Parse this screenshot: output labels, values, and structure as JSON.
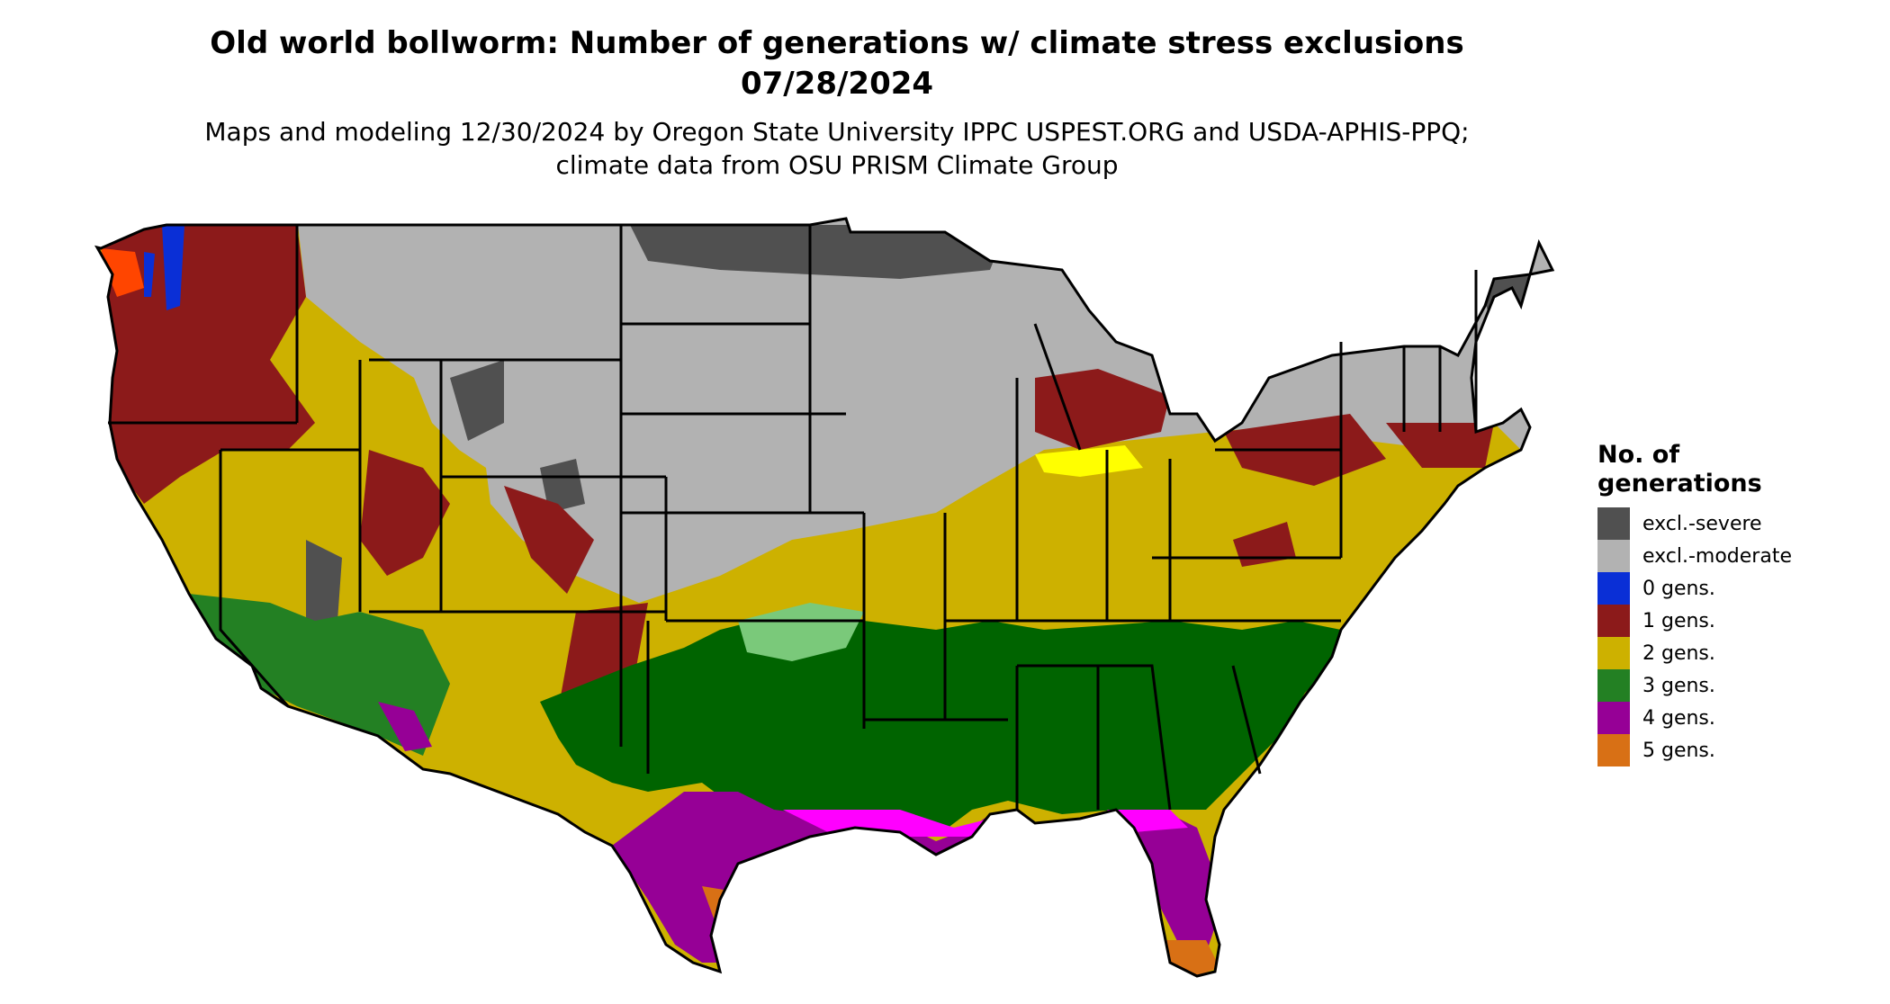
{
  "title": "Old world bollworm: Number of generations w/ climate stress exclusions 07/28/2024",
  "subtitle": "Maps and modeling 12/30/2024 by Oregon State University IPPC USPEST.ORG and USDA-APHIS-PPQ; climate data from OSU PRISM Climate Group",
  "legend": {
    "title": "No. of generations",
    "items": [
      {
        "label": "excl.-severe",
        "color": "#505050"
      },
      {
        "label": "excl.-moderate",
        "color": "#b2b2b2"
      },
      {
        "label": "0 gens.",
        "color": "#0a2fd6"
      },
      {
        "label": "1 gens.",
        "color": "#8c1a1a"
      },
      {
        "label": "2 gens.",
        "color": "#cdb100"
      },
      {
        "label": "3 gens.",
        "color": "#238023"
      },
      {
        "label": "4 gens.",
        "color": "#960096"
      },
      {
        "label": "5 gens.",
        "color": "#d87015"
      }
    ]
  },
  "map": {
    "region": "contiguous-united-states",
    "state_borders": true,
    "colors": {
      "dark_green": "#006400",
      "light_green": "#7ac97a",
      "bright_yellow": "#ffff00",
      "magenta": "#ff00ff",
      "orange_red": "#ff4500",
      "border": "#000000"
    }
  }
}
